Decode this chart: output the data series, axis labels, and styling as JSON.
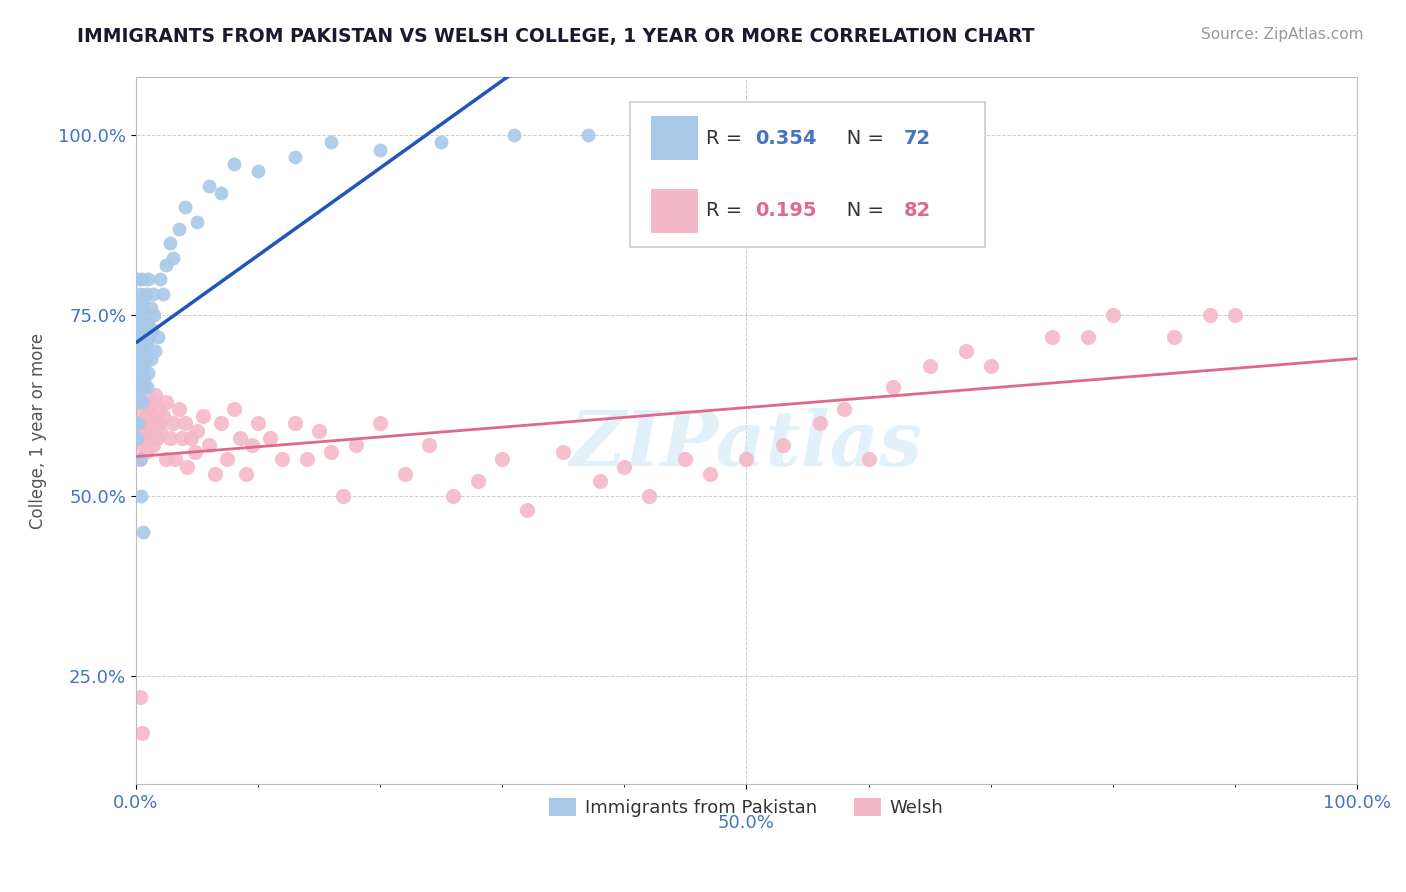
{
  "title": "IMMIGRANTS FROM PAKISTAN VS WELSH COLLEGE, 1 YEAR OR MORE CORRELATION CHART",
  "source_text": "Source: ZipAtlas.com",
  "ylabel": "College, 1 year or more",
  "xlim": [
    0.0,
    1.0
  ],
  "ylim": [
    0.1,
    1.08
  ],
  "yticks": [
    0.25,
    0.5,
    0.75,
    1.0
  ],
  "yticklabels": [
    "25.0%",
    "50.0%",
    "75.0%",
    "100.0%"
  ],
  "blue_color": "#a8c8e8",
  "pink_color": "#f4b8c8",
  "line_blue": "#2255bb",
  "line_pink": "#e06888",
  "R_blue": 0.354,
  "N_blue": 72,
  "R_pink": 0.195,
  "N_pink": 82,
  "legend_label_blue": "Immigrants from Pakistan",
  "legend_label_pink": "Welsh",
  "watermark": "ZIPatlas",
  "background_color": "#ffffff",
  "blue_scatter_x": [
    0.001,
    0.001,
    0.001,
    0.001,
    0.001,
    0.002,
    0.002,
    0.002,
    0.002,
    0.002,
    0.002,
    0.002,
    0.003,
    0.003,
    0.003,
    0.003,
    0.003,
    0.003,
    0.004,
    0.004,
    0.004,
    0.004,
    0.005,
    0.005,
    0.005,
    0.005,
    0.005,
    0.005,
    0.006,
    0.006,
    0.006,
    0.006,
    0.007,
    0.007,
    0.007,
    0.008,
    0.008,
    0.008,
    0.009,
    0.009,
    0.01,
    0.01,
    0.01,
    0.011,
    0.012,
    0.012,
    0.013,
    0.014,
    0.015,
    0.016,
    0.018,
    0.02,
    0.022,
    0.025,
    0.028,
    0.03,
    0.035,
    0.04,
    0.05,
    0.06,
    0.07,
    0.08,
    0.1,
    0.13,
    0.16,
    0.2,
    0.25,
    0.31,
    0.37,
    0.003,
    0.004,
    0.006
  ],
  "blue_scatter_y": [
    0.63,
    0.7,
    0.75,
    0.58,
    0.68,
    0.72,
    0.67,
    0.74,
    0.6,
    0.65,
    0.76,
    0.8,
    0.66,
    0.7,
    0.73,
    0.64,
    0.78,
    0.69,
    0.71,
    0.65,
    0.75,
    0.68,
    0.72,
    0.67,
    0.74,
    0.8,
    0.63,
    0.76,
    0.7,
    0.65,
    0.73,
    0.77,
    0.68,
    0.72,
    0.66,
    0.74,
    0.69,
    0.78,
    0.65,
    0.71,
    0.74,
    0.67,
    0.8,
    0.72,
    0.76,
    0.69,
    0.73,
    0.78,
    0.75,
    0.7,
    0.72,
    0.8,
    0.78,
    0.82,
    0.85,
    0.83,
    0.87,
    0.9,
    0.88,
    0.93,
    0.92,
    0.96,
    0.95,
    0.97,
    0.99,
    0.98,
    0.99,
    1.0,
    1.0,
    0.55,
    0.5,
    0.45
  ],
  "pink_scatter_x": [
    0.001,
    0.002,
    0.003,
    0.003,
    0.004,
    0.005,
    0.006,
    0.007,
    0.008,
    0.009,
    0.01,
    0.011,
    0.012,
    0.013,
    0.014,
    0.015,
    0.016,
    0.017,
    0.018,
    0.019,
    0.02,
    0.022,
    0.025,
    0.025,
    0.028,
    0.03,
    0.032,
    0.035,
    0.038,
    0.04,
    0.042,
    0.045,
    0.048,
    0.05,
    0.055,
    0.06,
    0.065,
    0.07,
    0.075,
    0.08,
    0.085,
    0.09,
    0.095,
    0.1,
    0.11,
    0.12,
    0.13,
    0.14,
    0.15,
    0.16,
    0.17,
    0.18,
    0.2,
    0.22,
    0.24,
    0.26,
    0.28,
    0.3,
    0.32,
    0.35,
    0.38,
    0.4,
    0.42,
    0.45,
    0.47,
    0.5,
    0.53,
    0.56,
    0.58,
    0.6,
    0.62,
    0.65,
    0.68,
    0.7,
    0.75,
    0.78,
    0.8,
    0.85,
    0.88,
    0.9,
    0.003,
    0.005
  ],
  "pink_scatter_y": [
    0.62,
    0.58,
    0.65,
    0.55,
    0.6,
    0.57,
    0.63,
    0.59,
    0.56,
    0.61,
    0.58,
    0.62,
    0.59,
    0.63,
    0.57,
    0.6,
    0.64,
    0.58,
    0.62,
    0.6,
    0.59,
    0.61,
    0.63,
    0.55,
    0.58,
    0.6,
    0.55,
    0.62,
    0.58,
    0.6,
    0.54,
    0.58,
    0.56,
    0.59,
    0.61,
    0.57,
    0.53,
    0.6,
    0.55,
    0.62,
    0.58,
    0.53,
    0.57,
    0.6,
    0.58,
    0.55,
    0.6,
    0.55,
    0.59,
    0.56,
    0.5,
    0.57,
    0.6,
    0.53,
    0.57,
    0.5,
    0.52,
    0.55,
    0.48,
    0.56,
    0.52,
    0.54,
    0.5,
    0.55,
    0.53,
    0.55,
    0.57,
    0.6,
    0.62,
    0.55,
    0.65,
    0.68,
    0.7,
    0.68,
    0.72,
    0.72,
    0.75,
    0.72,
    0.75,
    0.75,
    0.22,
    0.17
  ]
}
